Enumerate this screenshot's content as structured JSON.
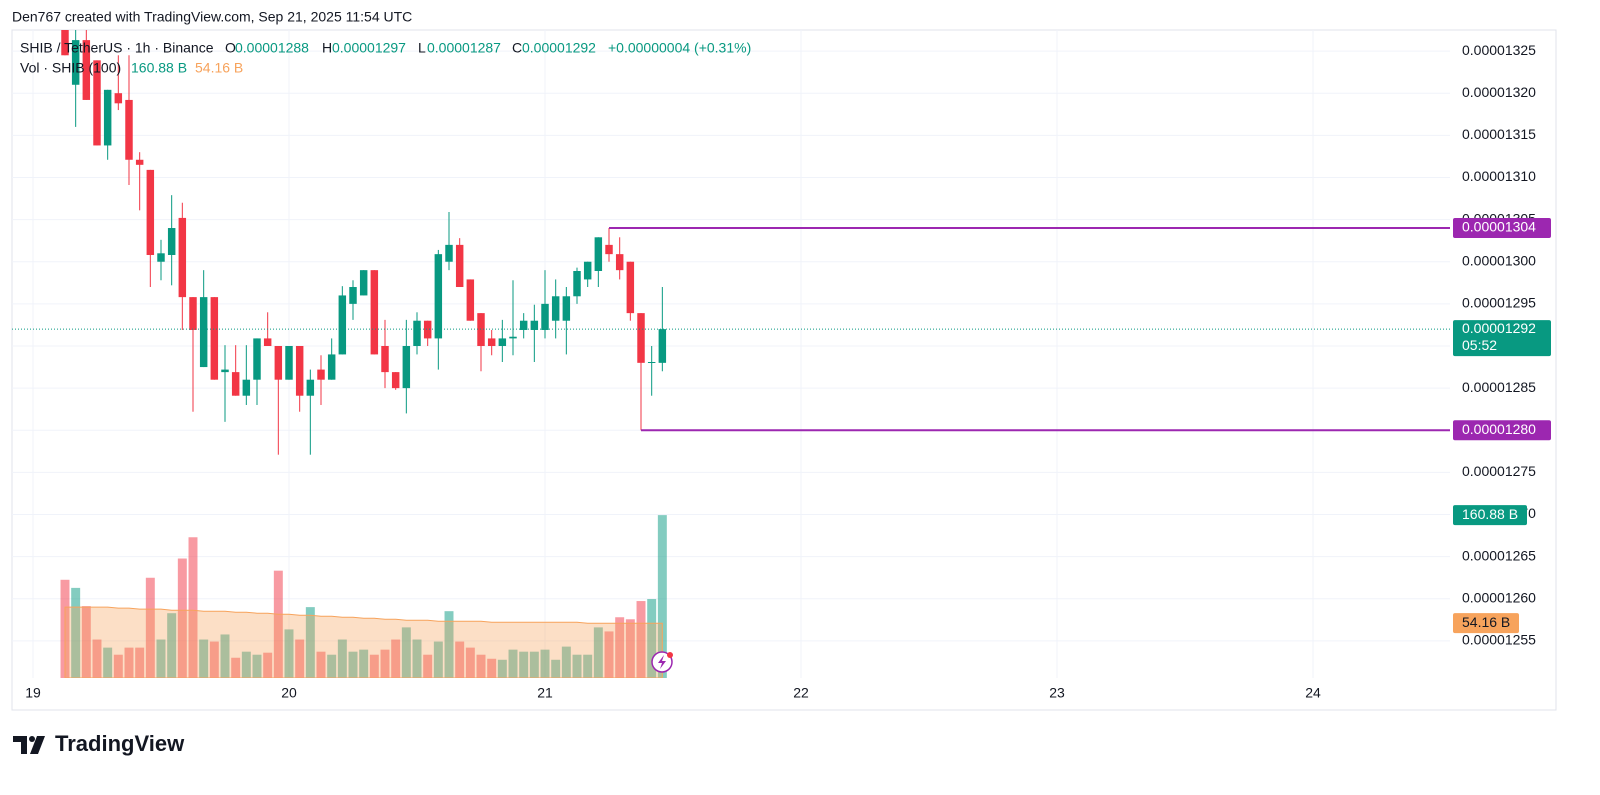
{
  "chart_data": {
    "type": "candlestick",
    "header": "Den767 created with TradingView.com, Sep 21, 2025 11:54 UTC",
    "title": "SHIB / TetherUS · 1h · Binance",
    "legend_keys": [
      "O",
      "H",
      "L",
      "C"
    ],
    "change": "+0.00000004 (+0.31%)",
    "countdown": "05:52",
    "footer_brand": "TradingView",
    "up_color": "#089981",
    "down_color": "#f23645",
    "xlim": [
      18.918,
      24.535
    ],
    "xticks": [
      19,
      20,
      21,
      22,
      23,
      24
    ],
    "ylim": [
      1.2506e-05,
      1.3275e-05
    ],
    "yticks": [
      {
        "value": 1.325e-05,
        "label": "0.00001325"
      },
      {
        "value": 1.32e-05,
        "label": "0.00001320"
      },
      {
        "value": 1.315e-05,
        "label": "0.00001315"
      },
      {
        "value": 1.31e-05,
        "label": "0.00001310"
      },
      {
        "value": 1.305e-05,
        "label": "0.00001305"
      },
      {
        "value": 1.3e-05,
        "label": "0.00001300"
      },
      {
        "value": 1.295e-05,
        "label": "0.00001295"
      },
      {
        "value": 1.29e-05,
        "label": "0.00001290"
      },
      {
        "value": 1.285e-05,
        "label": "0.00001285"
      },
      {
        "value": 1.28e-05,
        "label": "0.00001280"
      },
      {
        "value": 1.275e-05,
        "label": "0.00001275"
      },
      {
        "value": 1.27e-05,
        "label": "0.00001270"
      },
      {
        "value": 1.265e-05,
        "label": "0.00001265"
      },
      {
        "value": 1.26e-05,
        "label": "0.00001260"
      },
      {
        "value": 1.255e-05,
        "label": "0.00001255"
      }
    ],
    "grid": true,
    "x": [
      19.125,
      19.1667,
      19.2083,
      19.25,
      19.2917,
      19.3333,
      19.375,
      19.4167,
      19.4583,
      19.5,
      19.5417,
      19.5833,
      19.625,
      19.6667,
      19.7083,
      19.75,
      19.7917,
      19.8333,
      19.875,
      19.9167,
      19.9583,
      20,
      20.0417,
      20.0833,
      20.125,
      20.1667,
      20.2083,
      20.25,
      20.2917,
      20.3333,
      20.375,
      20.4167,
      20.4583,
      20.5,
      20.5417,
      20.5833,
      20.625,
      20.6667,
      20.7083,
      20.75,
      20.7917,
      20.8333,
      20.875,
      20.9167,
      20.9583,
      21,
      21.0417,
      21.0833,
      21.125,
      21.1667,
      21.2083,
      21.25,
      21.2917,
      21.3333,
      21.375,
      21.4167,
      21.4583
    ],
    "open": [
      1.3275e-05,
      1.321e-05,
      1.3263e-05,
      1.3239e-05,
      1.3138e-05,
      1.32e-05,
      1.3192e-05,
      1.3121e-05,
      1.3109e-05,
      1.3e-05,
      1.3008e-05,
      1.3052e-05,
      1.2958e-05,
      1.2875e-05,
      1.2958e-05,
      1.2869e-05,
      1.2869e-05,
      1.2841e-05,
      1.286e-05,
      1.2909e-05,
      1.29e-05,
      1.286e-05,
      1.29e-05,
      1.2841e-05,
      1.2872e-05,
      1.286e-05,
      1.289e-05,
      1.295e-05,
      1.296e-05,
      1.299e-05,
      1.29e-05,
      1.2869e-05,
      1.285e-05,
      1.29e-05,
      1.293e-05,
      1.2909e-05,
      1.3e-05,
      1.302e-05,
      1.2979e-05,
      1.2939e-05,
      1.2909e-05,
      1.29e-05,
      1.2909e-05,
      1.2919e-05,
      1.2919e-05,
      1.2919e-05,
      1.293e-05,
      1.293e-05,
      1.2959e-05,
      1.2979e-05,
      1.2989e-05,
      1.302e-05,
      1.3009e-05,
      1.3e-05,
      1.2939e-05,
      1.288e-05,
      1.288e-05
    ],
    "high": [
      1.3275e-05,
      1.3275e-05,
      1.3275e-05,
      1.3239e-05,
      1.3204e-05,
      1.3245e-05,
      1.3245e-05,
      1.313e-05,
      1.3109e-05,
      1.3026e-05,
      1.3079e-05,
      1.307e-05,
      1.2958e-05,
      1.299e-05,
      1.2958e-05,
      1.2901e-05,
      1.2901e-05,
      1.2901e-05,
      1.2909e-05,
      1.294e-05,
      1.29e-05,
      1.29e-05,
      1.29e-05,
      1.2872e-05,
      1.2889e-05,
      1.2909e-05,
      1.2971e-05,
      1.2978e-05,
      1.299e-05,
      1.299e-05,
      1.2931e-05,
      1.2869e-05,
      1.2931e-05,
      1.294e-05,
      1.293e-05,
      1.3014e-05,
      1.3059e-05,
      1.3028e-05,
      1.2979e-05,
      1.2939e-05,
      1.2919e-05,
      1.2931e-05,
      1.2978e-05,
      1.2939e-05,
      1.2949e-05,
      1.299e-05,
      1.2979e-05,
      1.297e-05,
      1.2993e-05,
      1.3e-05,
      1.3029e-05,
      1.304e-05,
      1.3029e-05,
      1.3e-05,
      1.2939e-05,
      1.29e-05,
      1.297e-05
    ],
    "low": [
      1.3245e-05,
      1.316e-05,
      1.3192e-05,
      1.3138e-05,
      1.3121e-05,
      1.318e-05,
      1.3091e-05,
      1.3061e-05,
      1.297e-05,
      1.2978e-05,
      1.2972e-05,
      1.2919e-05,
      1.2822e-05,
      1.2875e-05,
      1.286e-05,
      1.281e-05,
      1.2841e-05,
      1.283e-05,
      1.283e-05,
      1.29e-05,
      1.2771e-05,
      1.286e-05,
      1.2822e-05,
      1.2771e-05,
      1.283e-05,
      1.286e-05,
      1.289e-05,
      1.2931e-05,
      1.296e-05,
      1.289e-05,
      1.285e-05,
      1.2848e-05,
      1.282e-05,
      1.289e-05,
      1.29e-05,
      1.2872e-05,
      1.299e-05,
      1.297e-05,
      1.293e-05,
      1.287e-05,
      1.2889e-05,
      1.2881e-05,
      1.2889e-05,
      1.2909e-05,
      1.2881e-05,
      1.2909e-05,
      1.2909e-05,
      1.289e-05,
      1.295e-05,
      1.297e-05,
      1.297e-05,
      1.3e-05,
      1.2979e-05,
      1.293e-05,
      1.28e-05,
      1.2841e-05,
      1.287e-05
    ],
    "close": [
      1.3245e-05,
      1.3263e-05,
      1.3192e-05,
      1.3138e-05,
      1.3204e-05,
      1.3188e-05,
      1.3121e-05,
      1.3115e-05,
      1.3008e-05,
      1.301e-05,
      1.304e-05,
      1.2958e-05,
      1.2919e-05,
      1.2958e-05,
      1.286e-05,
      1.2872e-05,
      1.2841e-05,
      1.286e-05,
      1.2909e-05,
      1.29e-05,
      1.286e-05,
      1.29e-05,
      1.2841e-05,
      1.286e-05,
      1.286e-05,
      1.289e-05,
      1.296e-05,
      1.297e-05,
      1.299e-05,
      1.289e-05,
      1.2869e-05,
      1.285e-05,
      1.29e-05,
      1.293e-05,
      1.2909e-05,
      1.3009e-05,
      1.302e-05,
      1.297e-05,
      1.293e-05,
      1.29e-05,
      1.29e-05,
      1.2909e-05,
      1.2911e-05,
      1.293e-05,
      1.293e-05,
      1.295e-05,
      1.2959e-05,
      1.2959e-05,
      1.2989e-05,
      1.3e-05,
      1.3029e-05,
      1.3009e-05,
      1.299e-05,
      1.2939e-05,
      1.288e-05,
      1.2881e-05,
      1.292e-05
    ],
    "levels": [
      {
        "value": 1.304e-05,
        "x_start": 21.25,
        "color": "#9c27b0"
      },
      {
        "value": 1.28e-05,
        "label": "0.00001280",
        "x_start": 21.375,
        "color": "#9c27b0"
      }
    ],
    "volume_ylim": [
      0,
      640
    ],
    "volume": {
      "name": "Vol · SHIB (100)",
      "values": [
        97,
        89,
        71,
        38,
        30,
        23,
        30,
        30,
        99,
        38,
        64,
        118,
        139,
        38,
        36,
        43,
        20,
        26,
        23,
        25,
        106,
        48,
        38,
        70,
        26,
        23,
        38,
        26,
        28,
        23,
        28,
        38,
        50,
        38,
        23,
        36,
        66,
        36,
        30,
        23,
        19,
        18,
        28,
        26,
        26,
        28,
        18,
        31,
        23,
        23,
        50,
        46,
        60,
        58,
        76,
        78,
        160.88
      ],
      "last_label": "160.88 B"
    },
    "volume_ma": {
      "color": "#f7a35c",
      "values": [
        70,
        70,
        70,
        70,
        70,
        69,
        69,
        68,
        68,
        68,
        67,
        67,
        67,
        66,
        66,
        66,
        65,
        65,
        64,
        64,
        63,
        63,
        62,
        62,
        61,
        61,
        60,
        60,
        59,
        59,
        58,
        58,
        57,
        57,
        57,
        56,
        56,
        56,
        56,
        56,
        55,
        55,
        55,
        55,
        55,
        55,
        55,
        55,
        55,
        54,
        54,
        54,
        54,
        54,
        54,
        54,
        54.16
      ],
      "last_label": "54.16 B"
    }
  }
}
